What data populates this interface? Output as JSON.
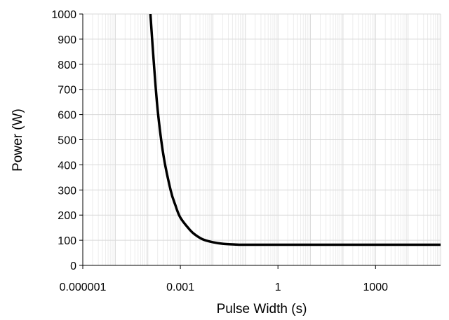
{
  "chart_data": {
    "type": "line",
    "xlabel": "Pulse Width (s)",
    "ylabel": "Power (W)",
    "x_scale": "log",
    "x_range": [
      1e-06,
      100000
    ],
    "x_ticks": [
      1e-06,
      0.001,
      1,
      1000
    ],
    "x_tick_labels": [
      "0.000001",
      "0.001",
      "1",
      "1000"
    ],
    "ylim": [
      0,
      1000
    ],
    "y_ticks": [
      0,
      100,
      200,
      300,
      400,
      500,
      600,
      700,
      800,
      900,
      1000
    ],
    "y_tick_labels": [
      "0",
      "100",
      "200",
      "300",
      "400",
      "500",
      "600",
      "700",
      "800",
      "900",
      "1000"
    ],
    "grid": true,
    "minor_grid_x": true,
    "series": [
      {
        "color": "#000000",
        "points": [
          {
            "x": 0.00012,
            "y": 1000
          },
          {
            "x": 0.00015,
            "y": 820
          },
          {
            "x": 0.0002,
            "y": 620
          },
          {
            "x": 0.0003,
            "y": 440
          },
          {
            "x": 0.0005,
            "y": 300
          },
          {
            "x": 0.0007,
            "y": 240
          },
          {
            "x": 0.001,
            "y": 190
          },
          {
            "x": 0.002,
            "y": 140
          },
          {
            "x": 0.003,
            "y": 120
          },
          {
            "x": 0.005,
            "y": 103
          },
          {
            "x": 0.01,
            "y": 92
          },
          {
            "x": 0.02,
            "y": 86
          },
          {
            "x": 0.05,
            "y": 83
          },
          {
            "x": 0.1,
            "y": 82
          },
          {
            "x": 1,
            "y": 82
          },
          {
            "x": 100,
            "y": 82
          },
          {
            "x": 100000,
            "y": 82
          }
        ]
      }
    ]
  }
}
